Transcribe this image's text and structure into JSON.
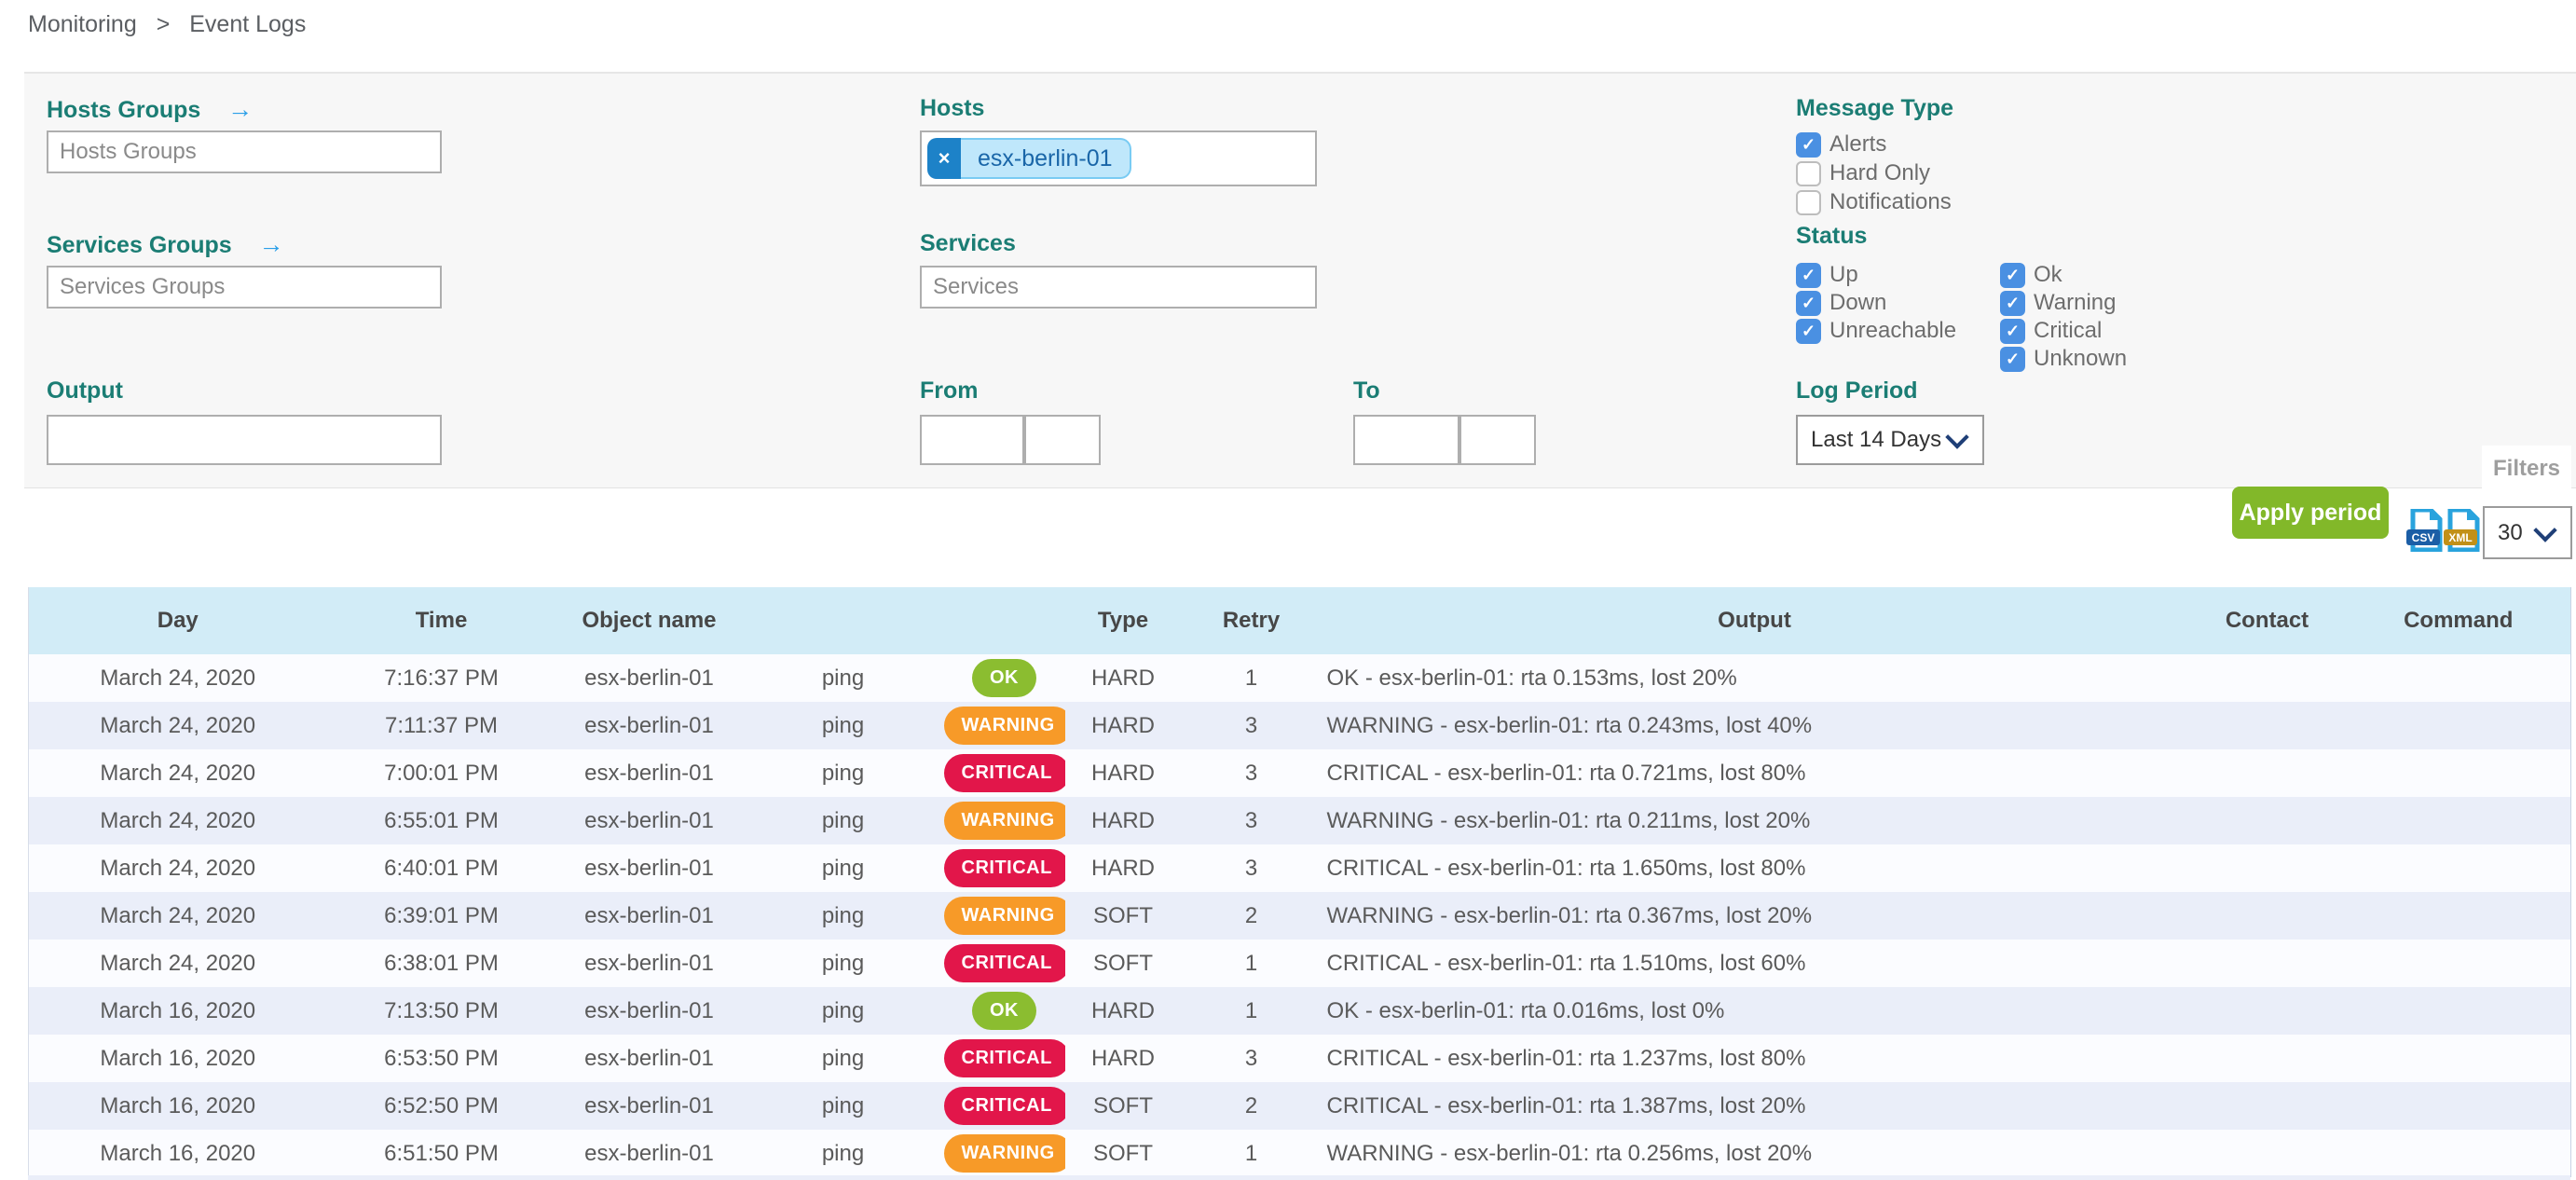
{
  "breadcrumb": {
    "items": [
      "Monitoring",
      "Event Logs"
    ],
    "separator": ">"
  },
  "filters": {
    "hosts_groups": {
      "label": "Hosts Groups",
      "placeholder": "Hosts Groups",
      "value": ""
    },
    "services_groups": {
      "label": "Services Groups",
      "placeholder": "Services Groups",
      "value": ""
    },
    "hosts": {
      "label": "Hosts",
      "chips": [
        {
          "text": "esx-berlin-01"
        }
      ],
      "remove_icon": "×"
    },
    "services": {
      "label": "Services",
      "placeholder": "Services",
      "value": ""
    },
    "output": {
      "label": "Output",
      "value": ""
    },
    "from": {
      "label": "From",
      "date_value": "",
      "time_value": ""
    },
    "to": {
      "label": "To",
      "date_value": "",
      "time_value": ""
    },
    "message_type": {
      "label": "Message Type",
      "options": [
        {
          "label": "Alerts",
          "checked": true
        },
        {
          "label": "Hard Only",
          "checked": false
        },
        {
          "label": "Notifications",
          "checked": false
        }
      ]
    },
    "status": {
      "label": "Status",
      "col1": [
        {
          "label": "Up",
          "checked": true
        },
        {
          "label": "Down",
          "checked": true
        },
        {
          "label": "Unreachable",
          "checked": true
        }
      ],
      "col2": [
        {
          "label": "Ok",
          "checked": true
        },
        {
          "label": "Warning",
          "checked": true
        },
        {
          "label": "Critical",
          "checked": true
        },
        {
          "label": "Unknown",
          "checked": true
        }
      ]
    },
    "log_period": {
      "label": "Log Period",
      "selected": "Last 14 Days"
    },
    "apply_button": "Apply period",
    "filters_tab": "Filters"
  },
  "toolbar": {
    "csv_icon": "CSV",
    "xml_icon": "XML",
    "page_size": "30"
  },
  "table": {
    "columns": [
      "Day",
      "Time",
      "Object name",
      "",
      "",
      "Type",
      "Retry",
      "Output",
      "Contact",
      "Command"
    ],
    "rows": [
      {
        "day": "March 24, 2020",
        "time": "7:16:37 PM",
        "object": "esx-berlin-01",
        "service": "ping",
        "status": "OK",
        "type": "HARD",
        "retry": "1",
        "output": "OK - esx-berlin-01: rta 0.153ms, lost 20%",
        "contact": "",
        "command": ""
      },
      {
        "day": "March 24, 2020",
        "time": "7:11:37 PM",
        "object": "esx-berlin-01",
        "service": "ping",
        "status": "WARNING",
        "type": "HARD",
        "retry": "3",
        "output": "WARNING - esx-berlin-01: rta 0.243ms, lost 40%",
        "contact": "",
        "command": ""
      },
      {
        "day": "March 24, 2020",
        "time": "7:00:01 PM",
        "object": "esx-berlin-01",
        "service": "ping",
        "status": "CRITICAL",
        "type": "HARD",
        "retry": "3",
        "output": "CRITICAL - esx-berlin-01: rta 0.721ms, lost 80%",
        "contact": "",
        "command": ""
      },
      {
        "day": "March 24, 2020",
        "time": "6:55:01 PM",
        "object": "esx-berlin-01",
        "service": "ping",
        "status": "WARNING",
        "type": "HARD",
        "retry": "3",
        "output": "WARNING - esx-berlin-01: rta 0.211ms, lost 20%",
        "contact": "",
        "command": ""
      },
      {
        "day": "March 24, 2020",
        "time": "6:40:01 PM",
        "object": "esx-berlin-01",
        "service": "ping",
        "status": "CRITICAL",
        "type": "HARD",
        "retry": "3",
        "output": "CRITICAL - esx-berlin-01: rta 1.650ms, lost 80%",
        "contact": "",
        "command": ""
      },
      {
        "day": "March 24, 2020",
        "time": "6:39:01 PM",
        "object": "esx-berlin-01",
        "service": "ping",
        "status": "WARNING",
        "type": "SOFT",
        "retry": "2",
        "output": "WARNING - esx-berlin-01: rta 0.367ms, lost 20%",
        "contact": "",
        "command": ""
      },
      {
        "day": "March 24, 2020",
        "time": "6:38:01 PM",
        "object": "esx-berlin-01",
        "service": "ping",
        "status": "CRITICAL",
        "type": "SOFT",
        "retry": "1",
        "output": "CRITICAL - esx-berlin-01: rta 1.510ms, lost 60%",
        "contact": "",
        "command": ""
      },
      {
        "day": "March 16, 2020",
        "time": "7:13:50 PM",
        "object": "esx-berlin-01",
        "service": "ping",
        "status": "OK",
        "type": "HARD",
        "retry": "1",
        "output": "OK - esx-berlin-01: rta 0.016ms, lost 0%",
        "contact": "",
        "command": ""
      },
      {
        "day": "March 16, 2020",
        "time": "6:53:50 PM",
        "object": "esx-berlin-01",
        "service": "ping",
        "status": "CRITICAL",
        "type": "HARD",
        "retry": "3",
        "output": "CRITICAL - esx-berlin-01: rta 1.237ms, lost 80%",
        "contact": "",
        "command": ""
      },
      {
        "day": "March 16, 2020",
        "time": "6:52:50 PM",
        "object": "esx-berlin-01",
        "service": "ping",
        "status": "CRITICAL",
        "type": "SOFT",
        "retry": "2",
        "output": "CRITICAL - esx-berlin-01: rta 1.387ms, lost 20%",
        "contact": "",
        "command": ""
      },
      {
        "day": "March 16, 2020",
        "time": "6:51:50 PM",
        "object": "esx-berlin-01",
        "service": "ping",
        "status": "WARNING",
        "type": "SOFT",
        "retry": "1",
        "output": "WARNING - esx-berlin-01: rta 0.256ms, lost 20%",
        "contact": "",
        "command": ""
      }
    ]
  },
  "colors": {
    "label_teal": "#1b7d74",
    "link_blue": "#2b9fe8",
    "checkbox_blue": "#4a90e2",
    "ok_green": "#8bbd30",
    "warning_orange": "#f79a28",
    "critical_red": "#e2164a",
    "apply_green": "#82b829",
    "table_header_bg": "#d2ecf7",
    "row_stripe": "#eaeef9",
    "chip_bg": "#bfe7fb"
  }
}
